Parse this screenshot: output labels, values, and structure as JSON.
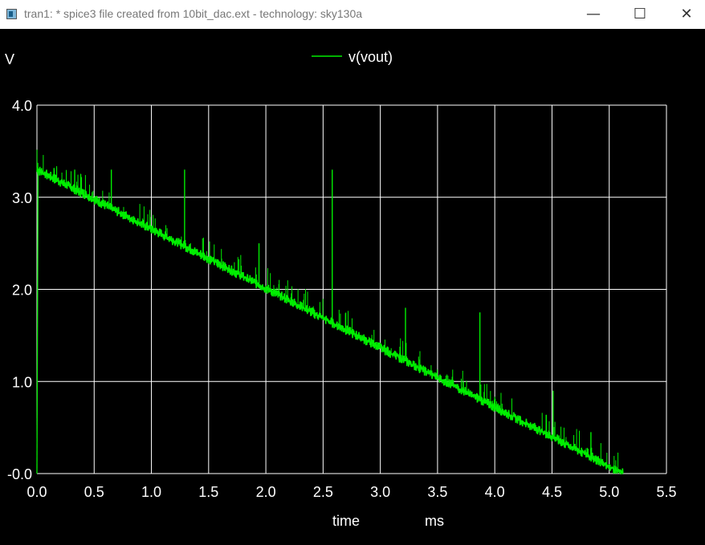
{
  "window": {
    "title": "tran1: * spice3 file created from 10bit_dac.ext - technology: sky130a",
    "icon": "app-window-icon",
    "min_glyph": "—",
    "max_glyph": "☐",
    "close_glyph": "✕"
  },
  "colors": {
    "background": "#000000",
    "grid": "#ffffff",
    "trace": "#00ee00",
    "text": "#ffffff"
  },
  "chart_data": {
    "type": "line",
    "title": "",
    "ylabel": "V",
    "xlabel": "time",
    "xunit": "ms",
    "xlim": [
      0,
      5.5
    ],
    "ylim": [
      0,
      4.0
    ],
    "xticks": [
      "0.0",
      "0.5",
      "1.0",
      "1.5",
      "2.0",
      "2.5",
      "3.0",
      "3.5",
      "4.0",
      "4.5",
      "5.0",
      "5.5"
    ],
    "yticks": [
      "-0.0",
      "1.0",
      "2.0",
      "3.0",
      "4.0"
    ],
    "grid": true,
    "legend_position": "top-center",
    "series": [
      {
        "name": "v(vout)",
        "start": [
          0.0,
          3.3
        ],
        "end": [
          5.12,
          0.0
        ],
        "initial_transient": [
          [
            0.0,
            0.0
          ],
          [
            0.005,
            1.65
          ],
          [
            0.01,
            3.3
          ]
        ],
        "spikes": [
          {
            "x": 0.33,
            "peak": 3.3
          },
          {
            "x": 0.65,
            "peak": 3.3
          },
          {
            "x": 1.29,
            "peak": 3.3
          },
          {
            "x": 1.94,
            "peak": 2.5
          },
          {
            "x": 2.58,
            "peak": 3.3
          },
          {
            "x": 3.22,
            "peak": 1.8
          },
          {
            "x": 3.87,
            "peak": 1.75
          },
          {
            "x": 4.51,
            "peak": 0.9
          },
          {
            "x": 4.84,
            "peak": 0.45
          }
        ]
      }
    ]
  }
}
